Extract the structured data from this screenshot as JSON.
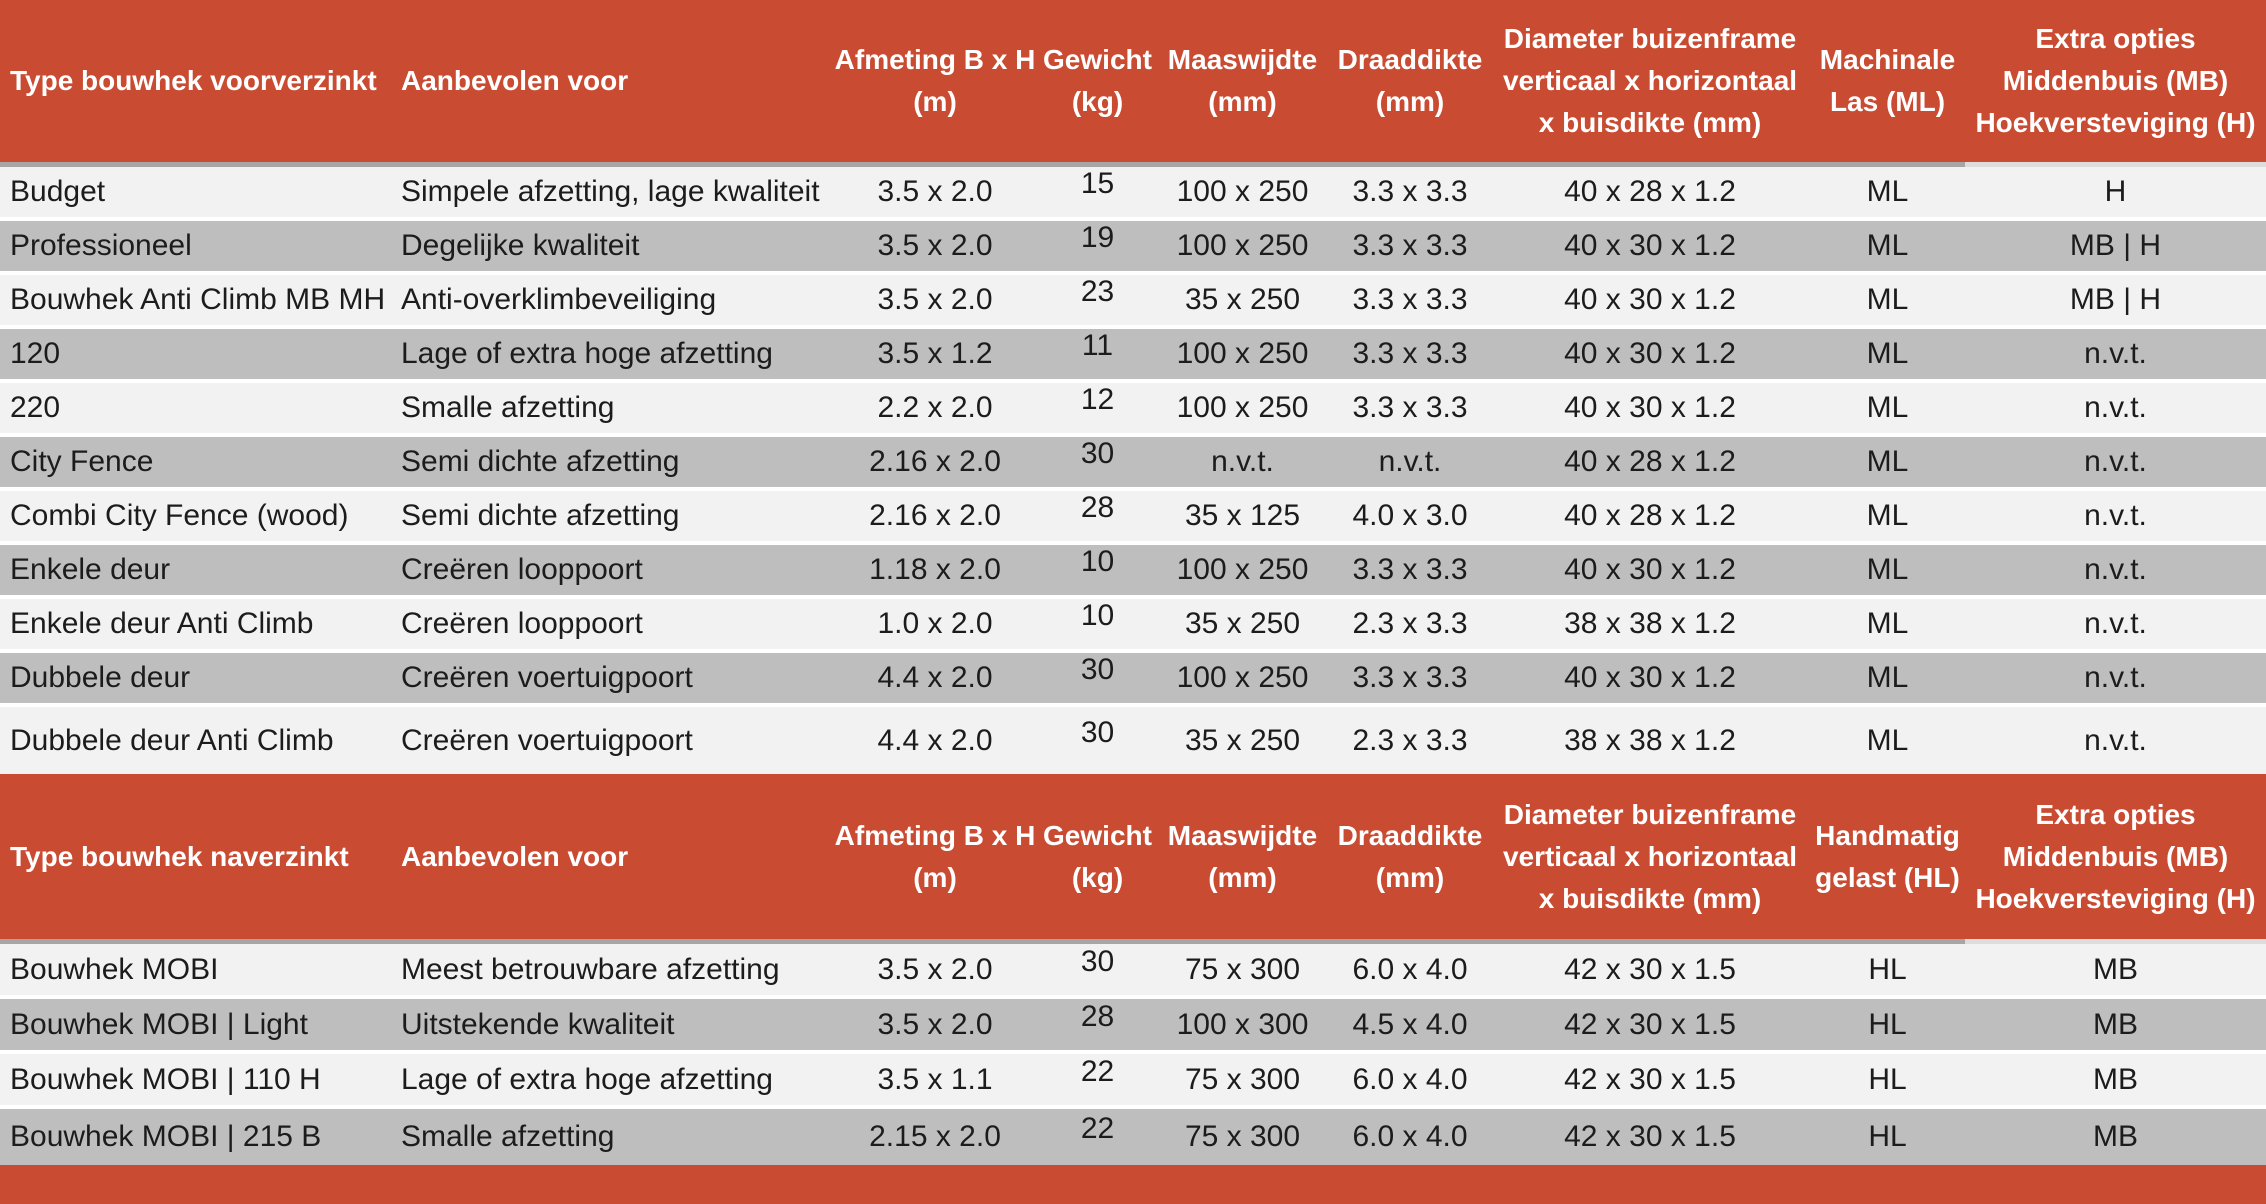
{
  "theme": {
    "accent": "#C94B32",
    "row_light": "#F2F2F2",
    "row_dark": "#BEBEBE",
    "separator": "#FFFFFF",
    "header_underline": "#A6A6A6",
    "text": "#1C1C1C",
    "header_text": "#FFFFFF"
  },
  "tables": [
    {
      "title": "Type bouwhek voorverzinkt",
      "headers": [
        "Type bouwhek voorverzinkt",
        "Aanbevolen voor",
        "Afmeting B x H\n(m)",
        "Gewicht\n(kg)",
        "Maaswijdte\n(mm)",
        "Draaddikte\n(mm)",
        "Diameter buizenframe\nverticaal x horizontaal\nx buisdikte (mm)",
        "Machinale\nLas (ML)",
        "Extra opties\nMiddenbuis (MB)\nHoekversteviging (H)"
      ],
      "rows": [
        [
          "Budget",
          "Simpele afzetting, lage kwaliteit",
          "3.5 x 2.0",
          "15",
          "100 x 250",
          "3.3 x 3.3",
          "40 x 28 x 1.2",
          "ML",
          "H"
        ],
        [
          "Professioneel",
          "Degelijke kwaliteit",
          "3.5 x 2.0",
          "19",
          "100 x 250",
          "3.3 x 3.3",
          "40 x 30 x 1.2",
          "ML",
          "MB | H"
        ],
        [
          "Bouwhek Anti Climb MB MH",
          "Anti-overklimbeveiliging",
          "3.5 x 2.0",
          "23",
          "35 x 250",
          "3.3 x 3.3",
          "40 x 30 x 1.2",
          "ML",
          "MB | H"
        ],
        [
          "120",
          "Lage of extra hoge afzetting",
          "3.5 x 1.2",
          "11",
          "100 x 250",
          "3.3 x 3.3",
          "40 x 30 x 1.2",
          "ML",
          "n.v.t."
        ],
        [
          "220",
          "Smalle afzetting",
          "2.2 x 2.0",
          "12",
          "100 x 250",
          "3.3 x 3.3",
          "40 x 30 x 1.2",
          "ML",
          "n.v.t."
        ],
        [
          "City Fence",
          "Semi dichte afzetting",
          "2.16 x 2.0",
          "30",
          "n.v.t.",
          "n.v.t.",
          "40 x 28 x 1.2",
          "ML",
          "n.v.t."
        ],
        [
          "Combi City Fence (wood)",
          "Semi dichte afzetting",
          "2.16 x 2.0",
          "28",
          "35 x 125",
          "4.0 x 3.0",
          "40 x 28 x 1.2",
          "ML",
          "n.v.t."
        ],
        [
          "Enkele deur",
          "Creëren looppoort",
          "1.18 x 2.0",
          "10",
          "100 x 250",
          "3.3 x 3.3",
          "40 x 30 x 1.2",
          "ML",
          "n.v.t."
        ],
        [
          "Enkele deur Anti Climb",
          "Creëren looppoort",
          "1.0 x 2.0",
          "10",
          "35 x 250",
          "2.3 x 3.3",
          "38 x 38 x 1.2",
          "ML",
          "n.v.t."
        ],
        [
          "Dubbele deur",
          "Creëren voertuigpoort",
          "4.4 x 2.0",
          "30",
          "100 x 250",
          "3.3 x 3.3",
          "40 x 30 x 1.2",
          "ML",
          "n.v.t."
        ],
        [
          "Dubbele deur Anti Climb",
          "Creëren voertuigpoort",
          "4.4 x 2.0",
          "30",
          "35 x 250",
          "2.3 x 3.3",
          "38 x 38 x 1.2",
          "ML",
          "n.v.t."
        ]
      ]
    },
    {
      "title": "Type bouwhek naverzinkt",
      "headers": [
        "Type bouwhek naverzinkt",
        "Aanbevolen voor",
        "Afmeting B x H\n(m)",
        "Gewicht\n(kg)",
        "Maaswijdte\n(mm)",
        "Draaddikte\n(mm)",
        "Diameter buizenframe\nverticaal x horizontaal\nx buisdikte (mm)",
        "Handmatig\ngelast (HL)",
        "Extra opties\nMiddenbuis (MB)\nHoekversteviging (H)"
      ],
      "rows": [
        [
          "Bouwhek MOBI",
          "Meest betrouwbare afzetting",
          "3.5 x 2.0",
          "30",
          "75 x 300",
          "6.0 x 4.0",
          "42 x 30 x 1.5",
          "HL",
          "MB"
        ],
        [
          "Bouwhek MOBI | Light",
          "Uitstekende kwaliteit",
          "3.5 x 2.0",
          "28",
          "100 x 300",
          "4.5 x 4.0",
          "42 x 30 x 1.5",
          "HL",
          "MB"
        ],
        [
          "Bouwhek MOBI | 110 H",
          "Lage of extra hoge afzetting",
          "3.5 x 1.1",
          "22",
          "75 x 300",
          "6.0 x 4.0",
          "42 x 30 x 1.5",
          "HL",
          "MB"
        ],
        [
          "Bouwhek MOBI | 215 B",
          "Smalle afzetting",
          "2.15 x 2.0",
          "22",
          "75 x 300",
          "6.0 x 4.0",
          "42 x 30 x 1.5",
          "HL",
          "MB"
        ]
      ]
    }
  ]
}
